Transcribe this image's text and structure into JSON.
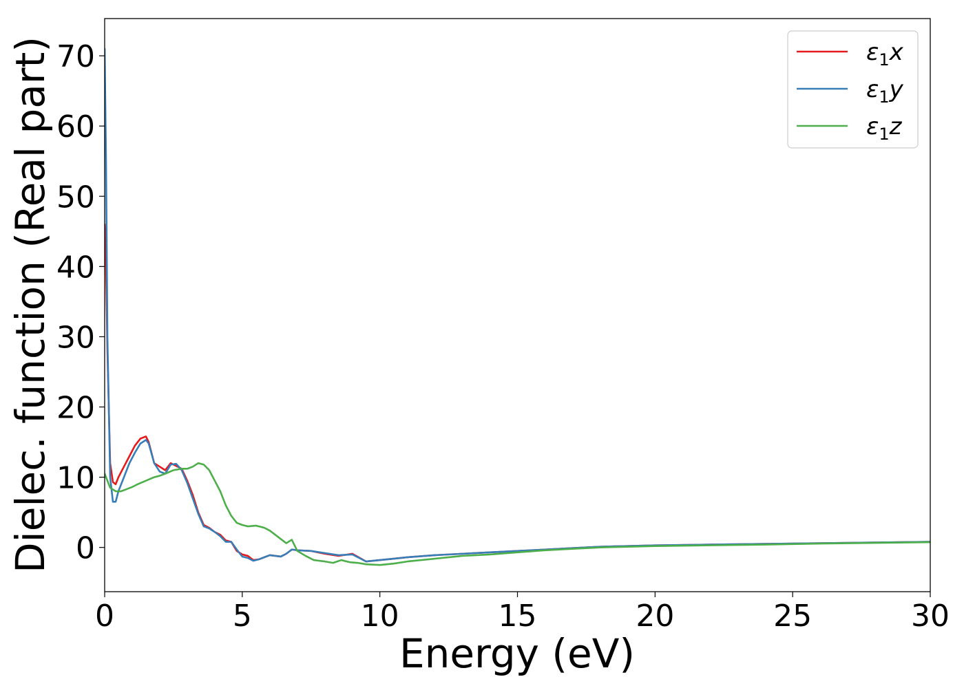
{
  "chart_data": {
    "type": "line",
    "title": "",
    "xlabel": "Energy (eV)",
    "ylabel": "Dielec. function (Real part)",
    "xlim": [
      0,
      30
    ],
    "ylim": [
      -6.3,
      75.3
    ],
    "xticks": [
      0,
      5,
      10,
      15,
      20,
      25,
      30
    ],
    "yticks": [
      0,
      10,
      20,
      30,
      40,
      50,
      60,
      70
    ],
    "grid": false,
    "legend_position": "top-right",
    "series": [
      {
        "name": "ε1x",
        "legend_main": "ε",
        "legend_sub": "1",
        "legend_var": "x",
        "color": "#e41a1c",
        "x": [
          0,
          0.05,
          0.1,
          0.2,
          0.3,
          0.4,
          0.5,
          0.7,
          0.9,
          1.1,
          1.3,
          1.5,
          1.6,
          1.8,
          2.0,
          2.2,
          2.4,
          2.6,
          2.8,
          3.0,
          3.2,
          3.4,
          3.6,
          3.8,
          4.0,
          4.2,
          4.4,
          4.6,
          4.8,
          5.0,
          5.2,
          5.4,
          5.6,
          5.8,
          6.0,
          6.2,
          6.4,
          6.6,
          6.8,
          7.0,
          7.5,
          8.0,
          8.5,
          9.0,
          9.5,
          10.0,
          10.5,
          11,
          12,
          13,
          14,
          15,
          16,
          17,
          18,
          19,
          20,
          22,
          24,
          26,
          28,
          30
        ],
        "y": [
          46,
          40,
          28,
          12,
          9.3,
          9,
          10,
          11.5,
          13,
          14.5,
          15.5,
          15.8,
          15,
          12,
          11.5,
          11,
          12,
          11.6,
          11.2,
          9.5,
          7.5,
          5,
          3.2,
          2.8,
          2.2,
          1.8,
          1.0,
          0.8,
          -0.5,
          -1.0,
          -1.2,
          -1.8,
          -1.7,
          -1.4,
          -1.1,
          -1.2,
          -1.3,
          -0.9,
          -0.3,
          -0.4,
          -0.5,
          -0.9,
          -1.2,
          -0.9,
          -2.0,
          -1.8,
          -1.6,
          -1.4,
          -1.1,
          -0.9,
          -0.7,
          -0.5,
          -0.3,
          -0.1,
          0.1,
          0.2,
          0.3,
          0.4,
          0.5,
          0.6,
          0.7,
          0.8
        ]
      },
      {
        "name": "ε1y",
        "legend_main": "ε",
        "legend_sub": "1",
        "legend_var": "y",
        "color": "#377eb8",
        "x": [
          0,
          0.05,
          0.1,
          0.2,
          0.3,
          0.4,
          0.5,
          0.7,
          0.9,
          1.1,
          1.3,
          1.5,
          1.6,
          1.8,
          2.0,
          2.2,
          2.4,
          2.6,
          2.8,
          3.0,
          3.2,
          3.4,
          3.6,
          3.8,
          4.0,
          4.2,
          4.4,
          4.6,
          4.8,
          5.0,
          5.2,
          5.4,
          5.6,
          5.8,
          6.0,
          6.2,
          6.4,
          6.6,
          6.8,
          7.0,
          7.5,
          8.0,
          8.5,
          9.0,
          9.5,
          10.0,
          10.5,
          11,
          12,
          13,
          14,
          15,
          16,
          17,
          18,
          19,
          20,
          22,
          24,
          26,
          28,
          30
        ],
        "y": [
          71,
          55,
          30,
          10,
          6.5,
          6.5,
          8,
          10,
          12,
          13.5,
          14.8,
          15.3,
          14.8,
          12,
          10.8,
          10.5,
          11.8,
          11.9,
          11.0,
          9.2,
          7.0,
          4.8,
          3.0,
          2.7,
          2.2,
          1.6,
          0.8,
          0.8,
          -0.3,
          -1.3,
          -1.5,
          -1.9,
          -1.7,
          -1.4,
          -1.1,
          -1.2,
          -1.3,
          -0.9,
          -0.3,
          -0.4,
          -0.5,
          -0.8,
          -1.1,
          -1.0,
          -2.0,
          -1.8,
          -1.6,
          -1.4,
          -1.1,
          -0.9,
          -0.7,
          -0.5,
          -0.3,
          -0.1,
          0.1,
          0.2,
          0.3,
          0.4,
          0.5,
          0.6,
          0.7,
          0.8
        ]
      },
      {
        "name": "ε1z",
        "legend_main": "ε",
        "legend_sub": "1",
        "legend_var": "z",
        "color": "#4daf4a",
        "x": [
          0,
          0.1,
          0.2,
          0.4,
          0.6,
          0.8,
          1.0,
          1.2,
          1.5,
          1.8,
          2.0,
          2.2,
          2.5,
          2.8,
          3.0,
          3.2,
          3.4,
          3.6,
          3.8,
          4.0,
          4.2,
          4.4,
          4.6,
          4.8,
          5.0,
          5.2,
          5.5,
          5.8,
          6.0,
          6.2,
          6.4,
          6.6,
          6.8,
          7.0,
          7.3,
          7.6,
          8.0,
          8.3,
          8.6,
          8.9,
          9.2,
          9.5,
          10.0,
          10.5,
          11,
          11.5,
          12,
          13,
          14,
          15,
          16,
          17,
          18,
          19,
          20,
          22,
          24,
          26,
          28,
          30
        ],
        "y": [
          10.5,
          9.5,
          8.5,
          8.0,
          8.0,
          8.3,
          8.6,
          9.0,
          9.5,
          10.0,
          10.2,
          10.5,
          11.0,
          11.2,
          11.2,
          11.5,
          12.0,
          11.8,
          11.0,
          9.5,
          8.0,
          6.0,
          4.5,
          3.5,
          3.2,
          3.0,
          3.1,
          2.8,
          2.4,
          1.8,
          1.2,
          0.6,
          1.1,
          -0.5,
          -1.2,
          -1.8,
          -2.0,
          -2.2,
          -1.8,
          -2.1,
          -2.2,
          -2.4,
          -2.5,
          -2.3,
          -2.0,
          -1.8,
          -1.6,
          -1.2,
          -1.0,
          -0.7,
          -0.4,
          -0.2,
          0.0,
          0.1,
          0.2,
          0.3,
          0.4,
          0.55,
          0.65,
          0.75
        ]
      }
    ]
  }
}
